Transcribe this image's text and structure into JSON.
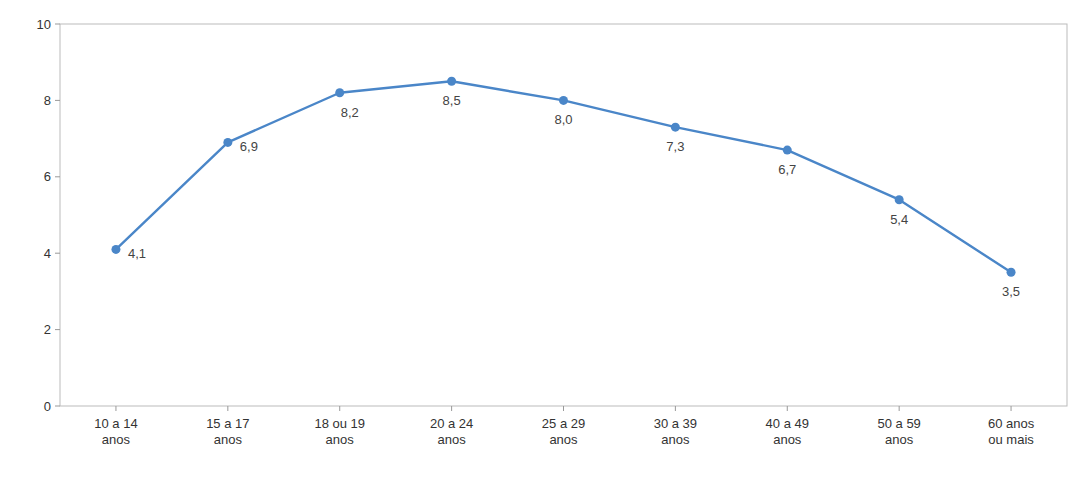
{
  "chart_data": {
    "type": "line",
    "categories": [
      "10 a 14\nanos",
      "15 a 17\nanos",
      "18 ou 19\nanos",
      "20 a 24\nanos",
      "25 a 29\nanos",
      "30 a 39\nanos",
      "40 a 49\nanos",
      "50 a 59\nanos",
      "60 anos\nou mais"
    ],
    "values": [
      4.1,
      6.9,
      8.2,
      8.5,
      8.0,
      7.3,
      6.7,
      5.4,
      3.5
    ],
    "value_labels": [
      "4,1",
      "6,9",
      "8,2",
      "8,5",
      "8,0",
      "7,3",
      "6,7",
      "5,4",
      "3,5"
    ],
    "color": "#4a86c8",
    "marker": "circle",
    "ylim": [
      0,
      10
    ],
    "yticks": [
      0,
      2,
      4,
      6,
      8,
      10
    ],
    "grid": false,
    "data_labels": true
  }
}
